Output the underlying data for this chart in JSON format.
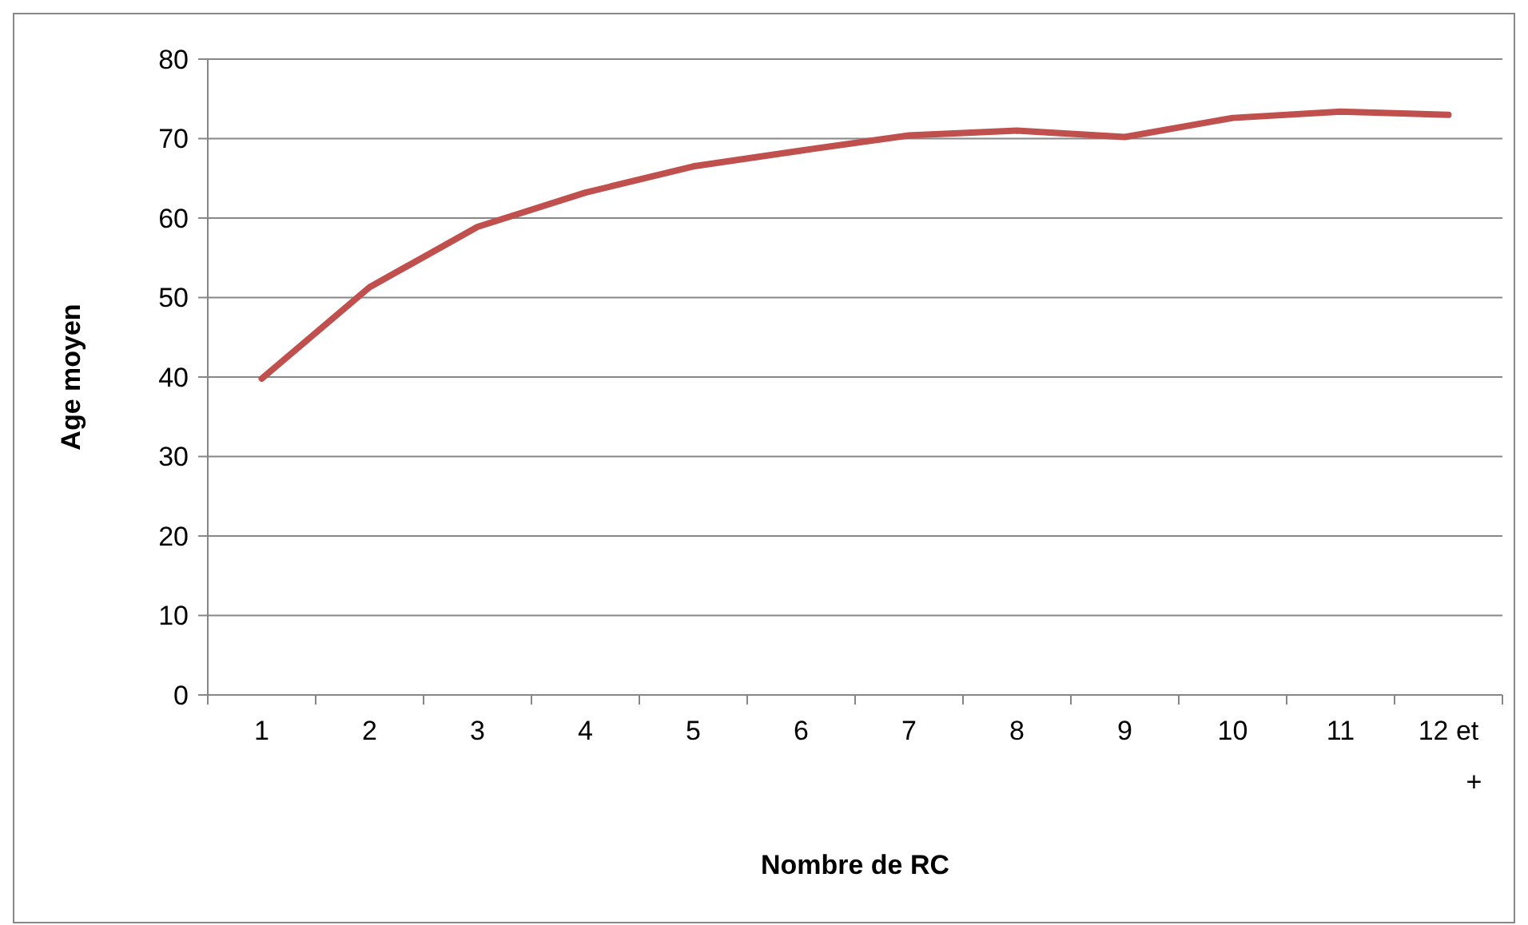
{
  "chart_data": {
    "type": "line",
    "xlabel": "Nombre de RC",
    "ylabel": "Age moyen",
    "categories": [
      "1",
      "2",
      "3",
      "4",
      "5",
      "6",
      "7",
      "8",
      "9",
      "10",
      "11",
      "12 et +"
    ],
    "series": [
      {
        "color": "#c0504d",
        "values": [
          39.8,
          51.3,
          58.9,
          63.2,
          66.5,
          68.5,
          70.4,
          71.0,
          70.2,
          72.6,
          73.4,
          73.0
        ]
      }
    ],
    "ylim": [
      0,
      80
    ],
    "yticks": [
      0,
      10,
      20,
      30,
      40,
      50,
      60,
      70,
      80
    ],
    "grid": "y",
    "marker": "none",
    "line_style": "solid"
  }
}
